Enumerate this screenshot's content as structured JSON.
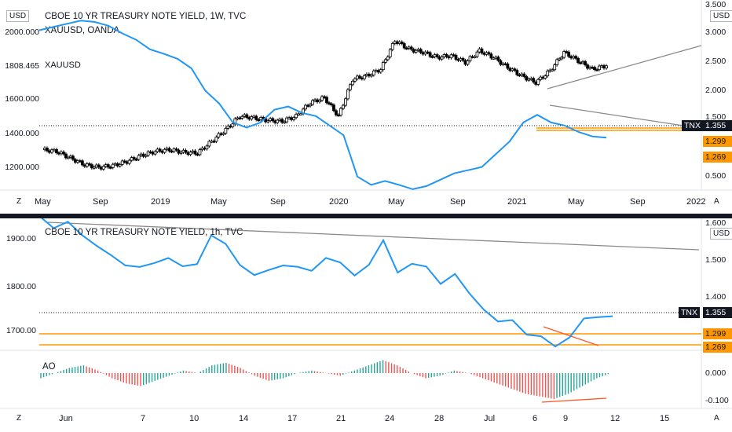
{
  "top": {
    "title": "CBOE 10 YR TREASURY NOTE YIELD, 1W, TVC",
    "series2_label": "XAUUSD, OANDA",
    "left_currency": "USD",
    "right_currency": "USD",
    "left_ticks": [
      "2000.000",
      "1808.465",
      "1600.000",
      "1400.000",
      "1200.000"
    ],
    "xauusd_tag": "XAUUSD",
    "right_ticks": [
      "3.500",
      "3.000",
      "2.500",
      "2.000",
      "1.500",
      "1.000",
      "0.500"
    ],
    "tnx_label": "TNX",
    "tnx_value": "1.355",
    "level1": "1.299",
    "level2": "1.269",
    "x_ticks": [
      "May",
      "Sep",
      "2019",
      "May",
      "Sep",
      "2020",
      "May",
      "Sep",
      "2021",
      "May",
      "Sep",
      "2022"
    ],
    "corner_left": "Z",
    "corner_right": "A"
  },
  "bottom": {
    "title": "CBOE 10 YR TREASURY NOTE YIELD, 1h, TVC",
    "right_currency": "USD",
    "left_ticks": [
      "1900.00",
      "1800.00",
      "1700.00"
    ],
    "right_ticks": [
      "1.600",
      "1.500",
      "1.400",
      "1.300"
    ],
    "tnx_label": "TNX",
    "tnx_value": "1.355",
    "level1": "1.299",
    "level2": "1.269",
    "ao_label": "AO",
    "ao_ticks": [
      "0.000",
      "-0.100"
    ],
    "x_ticks": [
      "Jun",
      "7",
      "10",
      "14",
      "17",
      "21",
      "24",
      "28",
      "Jul",
      "6",
      "9",
      "12",
      "15"
    ],
    "corner_left": "Z",
    "corner_right": "A"
  },
  "colors": {
    "line": "#2196f3",
    "candle": "#000000",
    "trend": "#8a8a8a",
    "level": "#ff9800",
    "ao_up": "#26a69a",
    "ao_down": "#ef5350",
    "div": "#ff5722"
  },
  "chart_data": [
    {
      "type": "line",
      "title": "CBOE 10 YR TREASURY NOTE YIELD, 1W, TVC",
      "series": [
        {
          "name": "CBOE 10 YR TREASURY NOTE YIELD",
          "axis": "right",
          "values": [
            3.05,
            3.1,
            3.15,
            3.2,
            3.18,
            3.12,
            3.0,
            2.9,
            2.75,
            2.68,
            2.6,
            2.45,
            2.1,
            1.9,
            1.6,
            1.52,
            1.6,
            1.8,
            1.85,
            1.75,
            1.7,
            1.55,
            1.4,
            0.75,
            0.62,
            0.68,
            0.62,
            0.55,
            0.6,
            0.7,
            0.8,
            0.85,
            0.9,
            1.1,
            1.3,
            1.6,
            1.72,
            1.6,
            1.55,
            1.45,
            1.38,
            1.36
          ]
        },
        {
          "name": "XAUUSD, OANDA",
          "axis": "left",
          "values": [
            1300,
            1290,
            1250,
            1210,
            1195,
            1205,
            1230,
            1265,
            1290,
            1300,
            1285,
            1280,
            1350,
            1420,
            1500,
            1490,
            1475,
            1470,
            1500,
            1580,
            1610,
            1500,
            1720,
            1740,
            1780,
            1950,
            1900,
            1880,
            1850,
            1860,
            1820,
            1890,
            1850,
            1790,
            1740,
            1700,
            1770,
            1880,
            1830,
            1780,
            1800
          ]
        }
      ],
      "left_axis": {
        "label": "USD",
        "ticks": [
          1200,
          1400,
          1600,
          1808.465,
          2000
        ]
      },
      "right_axis": {
        "label": "USD",
        "ylim": [
          0.5,
          3.5
        ]
      },
      "levels": [
        1.299,
        1.269
      ],
      "last_value": 1.355,
      "xlabels": [
        "May",
        "Sep",
        "2019",
        "May",
        "Sep",
        "2020",
        "May",
        "Sep",
        "2021",
        "May",
        "Sep",
        "2022"
      ]
    },
    {
      "type": "line",
      "title": "CBOE 10 YR TREASURY NOTE YIELD, 1h, TVC",
      "series": [
        {
          "name": "CBOE 10 YR TREASURY NOTE YIELD",
          "axis": "right",
          "values": [
            1.63,
            1.6,
            1.61,
            1.58,
            1.55,
            1.52,
            1.5,
            1.49,
            1.5,
            1.52,
            1.49,
            1.5,
            1.58,
            1.55,
            1.5,
            1.47,
            1.48,
            1.5,
            1.49,
            1.48,
            1.52,
            1.5,
            1.47,
            1.5,
            1.56,
            1.48,
            1.5,
            1.49,
            1.45,
            1.47,
            1.42,
            1.38,
            1.34,
            1.35,
            1.31,
            1.3,
            1.28,
            1.3,
            1.35,
            1.36,
            1.355
          ]
        },
        {
          "name": "AO",
          "panel": "ao",
          "values": [
            -0.02,
            0.0,
            0.02,
            0.03,
            0.01,
            -0.02,
            -0.04,
            -0.05,
            -0.03,
            -0.01,
            0.01,
            0.0,
            0.03,
            0.04,
            0.02,
            -0.01,
            -0.03,
            -0.02,
            0.0,
            0.01,
            0.0,
            -0.01,
            0.01,
            0.03,
            0.05,
            0.03,
            0.0,
            -0.02,
            -0.01,
            0.01,
            0.0,
            -0.02,
            -0.04,
            -0.06,
            -0.08,
            -0.09,
            -0.1,
            -0.08,
            -0.05,
            -0.02,
            0.0
          ]
        }
      ],
      "right_axis": {
        "label": "USD",
        "ticks": [
          1.3,
          1.4,
          1.5,
          1.6
        ]
      },
      "left_axis": {
        "ticks": [
          1700,
          1800,
          1900
        ]
      },
      "levels": [
        1.299,
        1.269
      ],
      "last_value": 1.355,
      "ao_axis": {
        "ticks": [
          0.0,
          -0.1
        ]
      },
      "xlabels": [
        "Jun",
        "7",
        "10",
        "14",
        "17",
        "21",
        "24",
        "28",
        "Jul",
        "6",
        "9",
        "12",
        "15"
      ]
    }
  ]
}
